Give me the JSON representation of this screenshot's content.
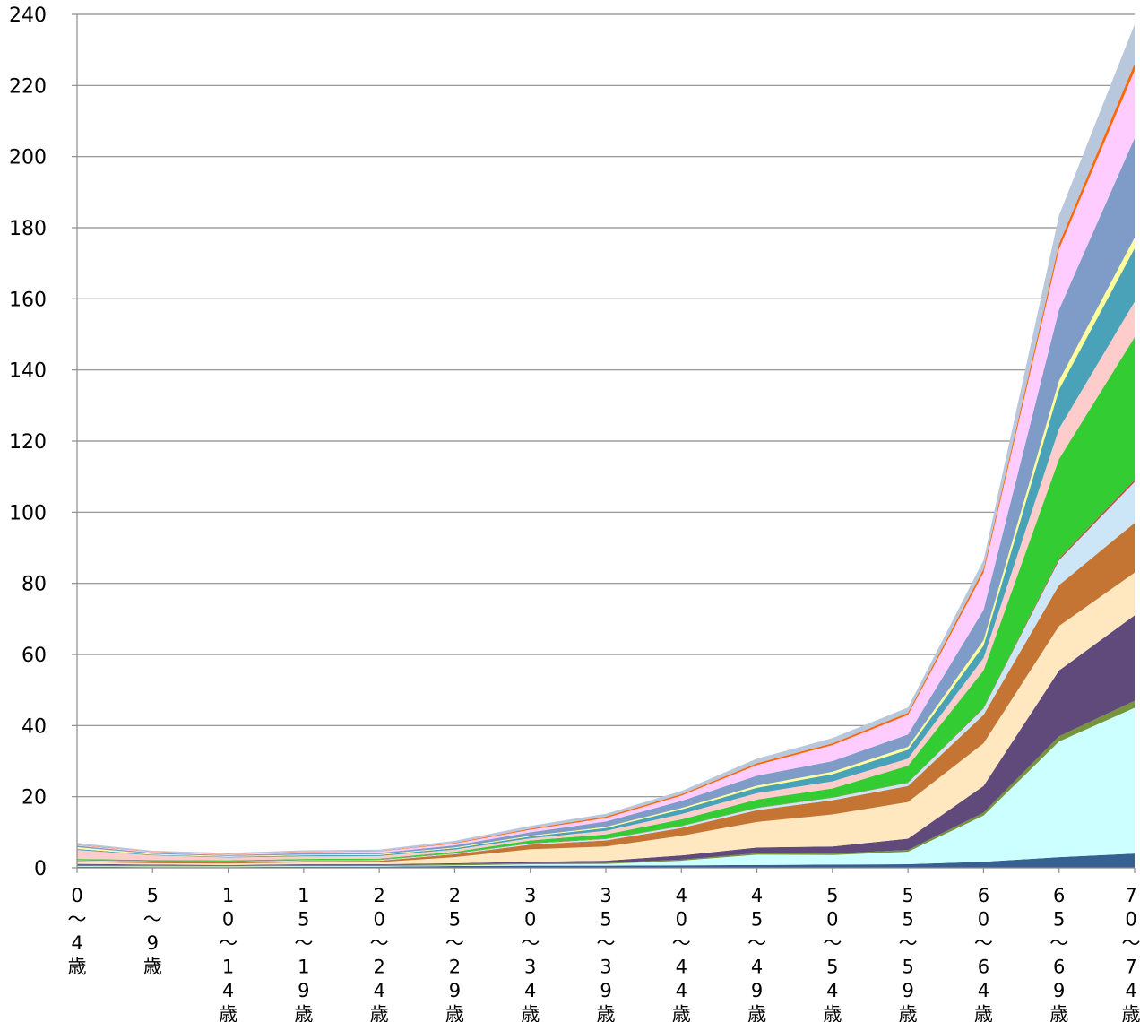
{
  "chart_data": {
    "type": "area",
    "stacked": true,
    "title": "",
    "xlabel": "",
    "ylabel": "",
    "ylim": [
      0,
      240
    ],
    "yticks": [
      0,
      20,
      40,
      60,
      80,
      100,
      120,
      140,
      160,
      180,
      200,
      220,
      240
    ],
    "grid": true,
    "legend": "none",
    "categories": [
      "0～4歳",
      "5～9歳",
      "10～14歳",
      "15～19歳",
      "20～24歳",
      "25～29歳",
      "30～34歳",
      "35～39歳",
      "40～44歳",
      "45～49歳",
      "50～54歳",
      "55～59歳",
      "60～64歳",
      "65～69歳",
      "70～74歳"
    ],
    "series": [
      {
        "color": "#376092",
        "values": [
          0.3,
          0.2,
          0.2,
          0.3,
          0.3,
          0.5,
          0.6,
          0.6,
          0.7,
          0.8,
          0.9,
          1.0,
          1.7,
          3.0,
          4.0
        ]
      },
      {
        "color": "#ccffff",
        "values": [
          0.2,
          0.2,
          0.2,
          0.2,
          0.2,
          0.2,
          0.4,
          0.5,
          1.3,
          2.9,
          2.7,
          3.5,
          13.0,
          32.5,
          41.0
        ]
      },
      {
        "color": "#77933c",
        "values": [
          0.3,
          0.3,
          0.2,
          0.3,
          0.3,
          0.3,
          0.3,
          0.3,
          0.3,
          0.4,
          0.4,
          0.5,
          0.8,
          1.5,
          2.0
        ]
      },
      {
        "color": "#604a7b",
        "values": [
          0.3,
          0.2,
          0.2,
          0.2,
          0.2,
          0.3,
          0.4,
          0.6,
          1.2,
          1.6,
          2.0,
          3.2,
          7.5,
          18.5,
          24.0
        ]
      },
      {
        "color": "#ffe8c0",
        "values": [
          0.5,
          0.4,
          0.4,
          0.5,
          0.6,
          1.7,
          3.5,
          4.0,
          5.5,
          7.2,
          9.0,
          10.3,
          12.0,
          12.5,
          12.0
        ]
      },
      {
        "color": "#c47534",
        "values": [
          0.3,
          0.3,
          0.3,
          0.4,
          0.4,
          0.8,
          1.3,
          1.7,
          2.2,
          3.3,
          4.0,
          4.5,
          8.0,
          11.5,
          14.0
        ]
      },
      {
        "color": "#cce6f8",
        "values": [
          0.2,
          0.2,
          0.2,
          0.2,
          0.2,
          0.2,
          0.3,
          0.4,
          0.5,
          0.6,
          0.7,
          0.9,
          1.8,
          7.0,
          11.5
        ]
      },
      {
        "color": "#c0504d",
        "values": [
          0.1,
          0.1,
          0.1,
          0.1,
          0.1,
          0.1,
          0.1,
          0.1,
          0.1,
          0.1,
          0.1,
          0.1,
          0.2,
          0.5,
          0.7
        ]
      },
      {
        "color": "#33cc33",
        "values": [
          0.3,
          0.3,
          0.3,
          0.3,
          0.3,
          0.4,
          0.8,
          1.2,
          1.8,
          2.3,
          2.5,
          4.7,
          10.5,
          28.0,
          40.0
        ]
      },
      {
        "color": "#ffcccc",
        "values": [
          2.5,
          1.3,
          0.8,
          0.7,
          0.7,
          0.6,
          0.6,
          1.0,
          1.5,
          1.8,
          2.0,
          2.0,
          3.5,
          8.5,
          10.0
        ]
      },
      {
        "color": "#4aa2b8",
        "values": [
          0.3,
          0.2,
          0.2,
          0.3,
          0.3,
          0.4,
          0.5,
          0.8,
          1.3,
          1.5,
          2.0,
          2.5,
          3.5,
          11.0,
          15.0
        ]
      },
      {
        "color": "#ffff99",
        "values": [
          0.5,
          0.2,
          0.2,
          0.2,
          0.2,
          0.2,
          0.2,
          0.3,
          0.4,
          0.6,
          0.7,
          0.8,
          1.5,
          2.5,
          3.0
        ]
      },
      {
        "color": "#7f9cc8",
        "values": [
          0.4,
          0.3,
          0.3,
          0.4,
          0.4,
          0.6,
          1.0,
          1.5,
          2.0,
          2.8,
          3.0,
          3.5,
          8.5,
          20.0,
          28.0
        ]
      },
      {
        "color": "#ffccff",
        "values": [
          0.2,
          0.2,
          0.2,
          0.3,
          0.4,
          0.5,
          0.7,
          1.0,
          1.5,
          3.0,
          4.5,
          5.5,
          10.5,
          17.0,
          19.0
        ]
      },
      {
        "color": "#ff6600",
        "values": [
          0.1,
          0.1,
          0.1,
          0.1,
          0.1,
          0.2,
          0.3,
          0.4,
          0.4,
          0.5,
          0.5,
          0.6,
          1.0,
          1.5,
          2.0
        ]
      },
      {
        "color": "#b9c7dd",
        "values": [
          0.5,
          0.3,
          0.3,
          0.4,
          0.4,
          0.6,
          0.8,
          0.8,
          0.9,
          1.3,
          1.5,
          1.5,
          2.5,
          8.0,
          11.0
        ]
      }
    ]
  }
}
